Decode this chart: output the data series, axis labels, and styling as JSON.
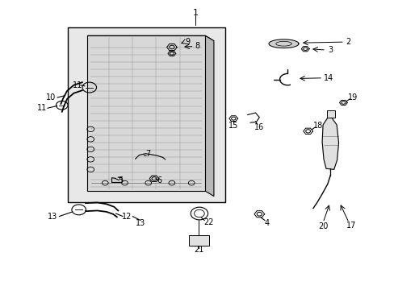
{
  "bg_color": "#ffffff",
  "box_color": "#e8e8e8",
  "line_color": "#000000",
  "fig_width": 4.89,
  "fig_height": 3.6,
  "dpi": 100
}
